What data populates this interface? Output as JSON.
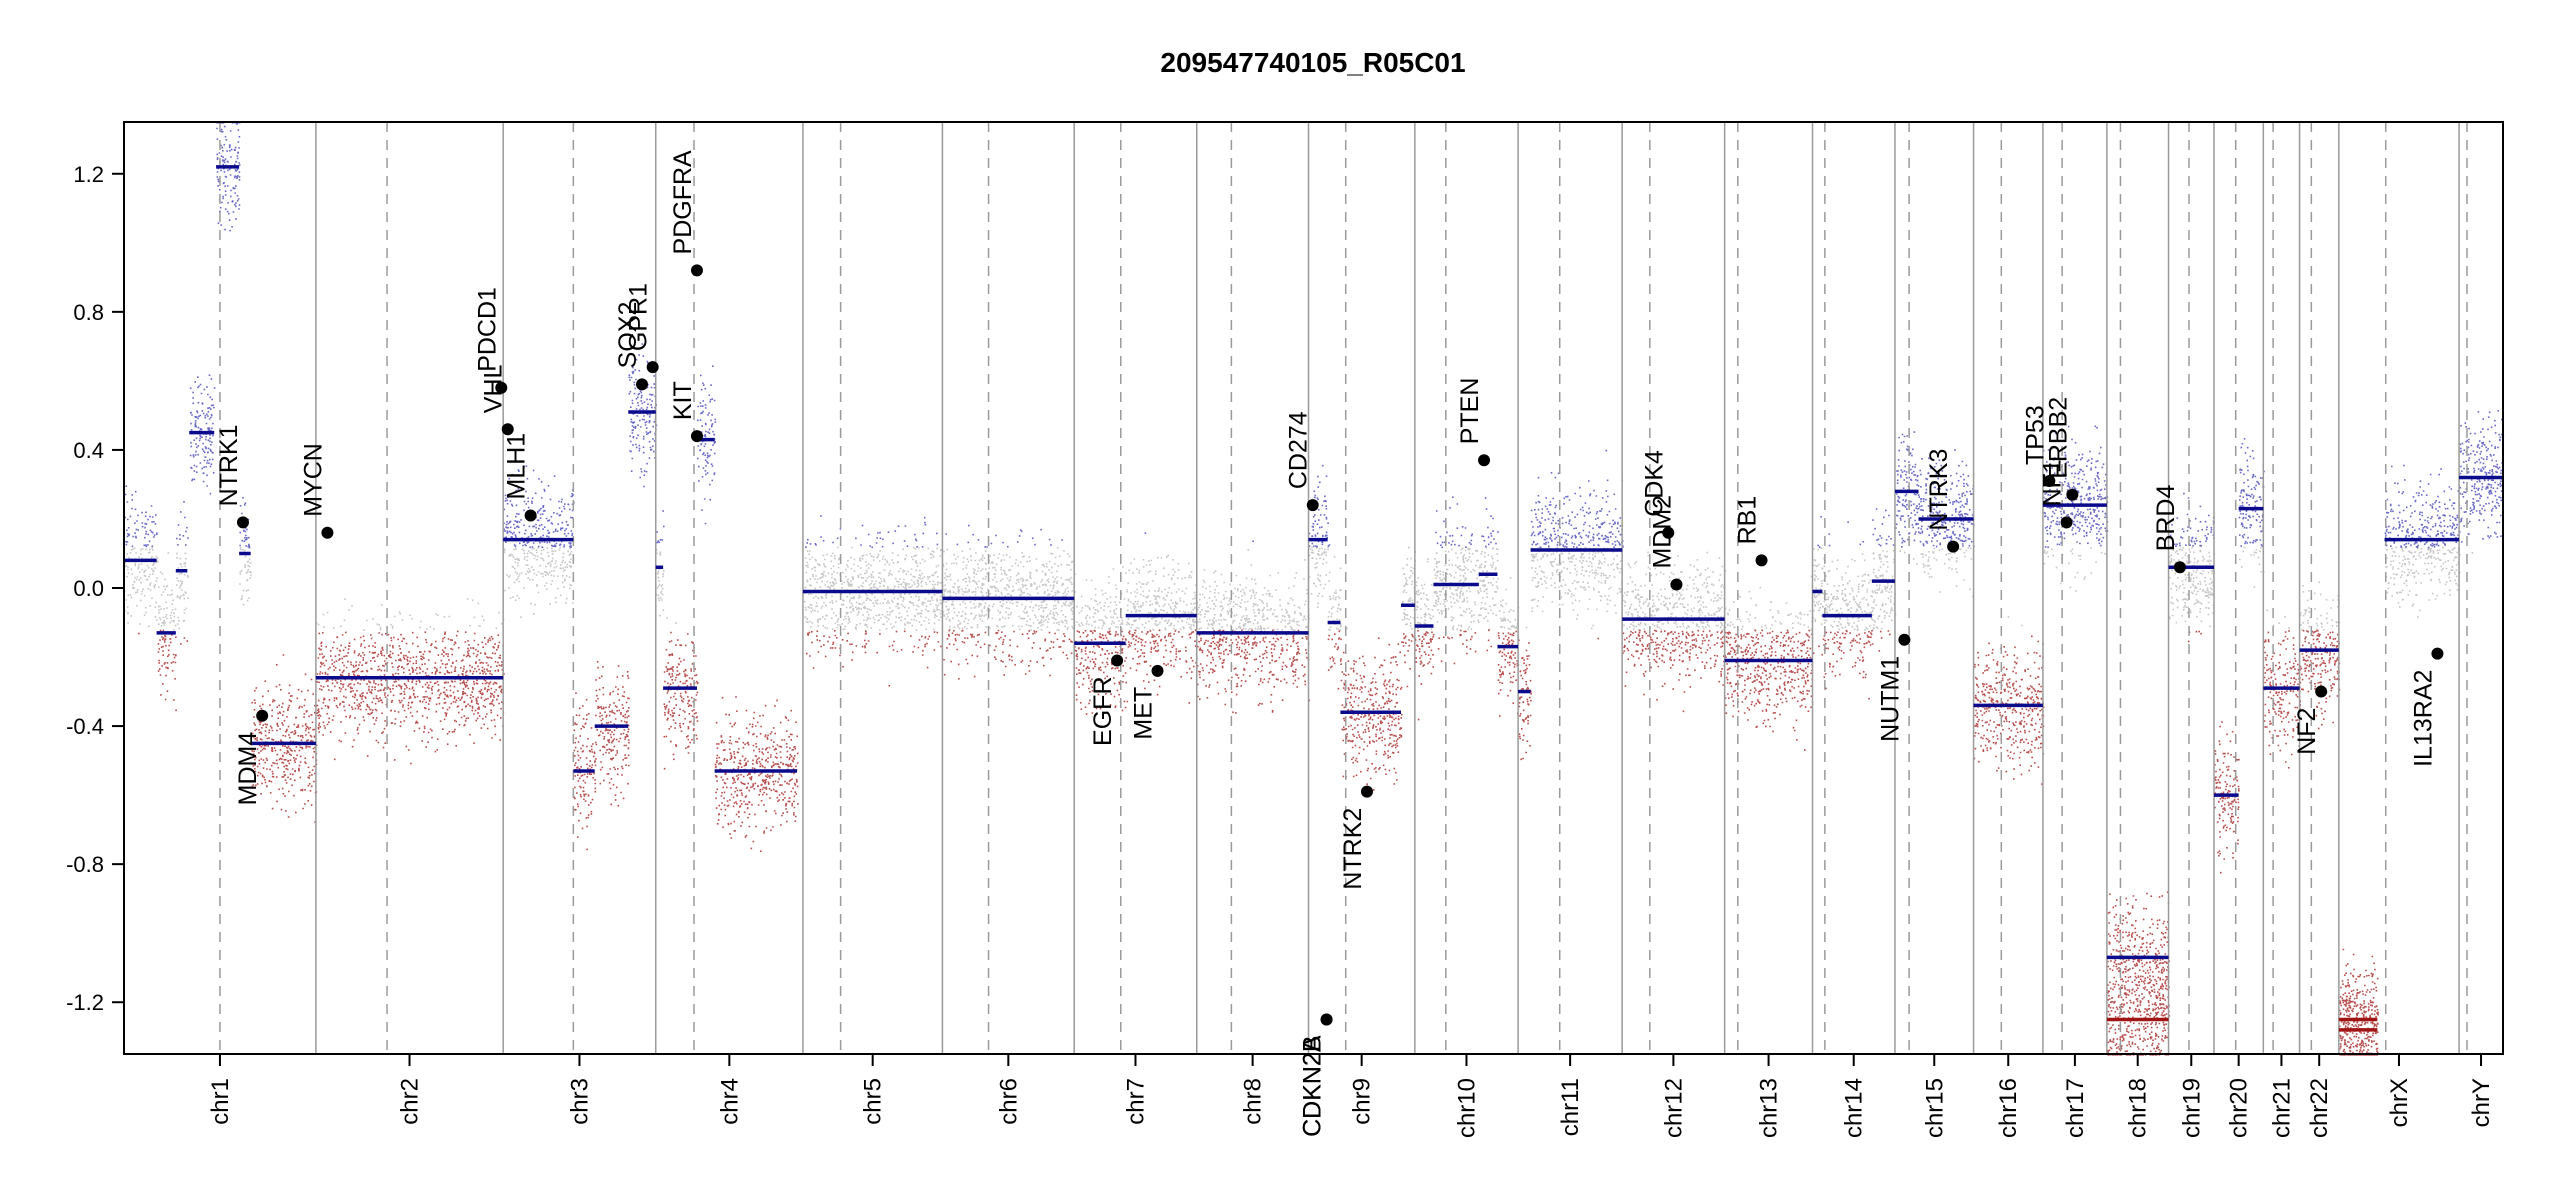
{
  "chart_data": {
    "type": "scatter",
    "title": "209547740105_R05C01",
    "xlabel": "",
    "ylabel": "",
    "ylim": [
      -1.35,
      1.35
    ],
    "y_ticks": [
      -1.2,
      -0.8,
      -0.4,
      0.0,
      0.4,
      0.8,
      1.2
    ],
    "y_tick_labels": [
      "-1.2",
      "-0.8",
      "-0.4",
      "0.0",
      "0.4",
      "0.8",
      "1.2"
    ],
    "grid": false,
    "legend": "none",
    "colors": {
      "gain": "#3a3ab4",
      "neutral": "#b4b4b4",
      "loss": "#a01414",
      "segment": "#0a0a8c",
      "segment_loss": "#a01414",
      "gene_point": "#000000"
    },
    "chromosomes": [
      {
        "name": "chr1",
        "length": 249.0,
        "centromere": 0.5
      },
      {
        "name": "chr2",
        "length": 243.0,
        "centromere": 0.38
      },
      {
        "name": "chr3",
        "length": 198.0,
        "centromere": 0.46
      },
      {
        "name": "chr4",
        "length": 191.0,
        "centromere": 0.26
      },
      {
        "name": "chr5",
        "length": 181.0,
        "centromere": 0.27
      },
      {
        "name": "chr6",
        "length": 171.0,
        "centromere": 0.35
      },
      {
        "name": "chr7",
        "length": 159.0,
        "centromere": 0.38
      },
      {
        "name": "chr8",
        "length": 145.0,
        "centromere": 0.31
      },
      {
        "name": "chr9",
        "length": 138.0,
        "centromere": 0.35
      },
      {
        "name": "chr10",
        "length": 134.0,
        "centromere": 0.3
      },
      {
        "name": "chr11",
        "length": 135.0,
        "centromere": 0.4
      },
      {
        "name": "chr12",
        "length": 133.0,
        "centromere": 0.27
      },
      {
        "name": "chr13",
        "length": 114.0,
        "centromere": 0.15
      },
      {
        "name": "chr14",
        "length": 107.0,
        "centromere": 0.15
      },
      {
        "name": "chr15",
        "length": 102.0,
        "centromere": 0.18
      },
      {
        "name": "chr16",
        "length": 90.0,
        "centromere": 0.4
      },
      {
        "name": "chr17",
        "length": 83.0,
        "centromere": 0.3
      },
      {
        "name": "chr18",
        "length": 80.0,
        "centromere": 0.22
      },
      {
        "name": "chr19",
        "length": 59.0,
        "centromere": 0.45
      },
      {
        "name": "chr20",
        "length": 64.0,
        "centromere": 0.44
      },
      {
        "name": "chr21",
        "length": 47.0,
        "centromere": 0.27
      },
      {
        "name": "chr22",
        "length": 51.0,
        "centromere": 0.3
      },
      {
        "name": "chrX",
        "length": 156.0,
        "centromere": 0.39
      },
      {
        "name": "chrY",
        "length": 57.0,
        "centromere": 0.18
      }
    ],
    "segments": [
      {
        "chr": "chr1",
        "start": 0.0,
        "end": 0.17,
        "value": 0.08
      },
      {
        "chr": "chr1",
        "start": 0.17,
        "end": 0.27,
        "value": -0.13
      },
      {
        "chr": "chr1",
        "start": 0.27,
        "end": 0.33,
        "value": 0.05
      },
      {
        "chr": "chr1",
        "start": 0.34,
        "end": 0.47,
        "value": 0.45
      },
      {
        "chr": "chr1",
        "start": 0.48,
        "end": 0.6,
        "value": 1.22
      },
      {
        "chr": "chr1",
        "start": 0.6,
        "end": 0.66,
        "value": 0.1
      },
      {
        "chr": "chr1",
        "start": 0.66,
        "end": 1.0,
        "value": -0.45
      },
      {
        "chr": "chr2",
        "start": 0.0,
        "end": 1.0,
        "value": -0.26
      },
      {
        "chr": "chr3",
        "start": 0.0,
        "end": 0.46,
        "value": 0.14
      },
      {
        "chr": "chr3",
        "start": 0.46,
        "end": 0.6,
        "value": -0.53
      },
      {
        "chr": "chr3",
        "start": 0.6,
        "end": 0.82,
        "value": -0.4
      },
      {
        "chr": "chr3",
        "start": 0.82,
        "end": 1.0,
        "value": 0.51
      },
      {
        "chr": "chr4",
        "start": 0.0,
        "end": 0.05,
        "value": 0.06
      },
      {
        "chr": "chr4",
        "start": 0.05,
        "end": 0.28,
        "value": -0.29
      },
      {
        "chr": "chr4",
        "start": 0.28,
        "end": 0.4,
        "value": 0.43
      },
      {
        "chr": "chr4",
        "start": 0.4,
        "end": 0.96,
        "value": -0.53
      },
      {
        "chr": "chr5",
        "start": 0.0,
        "end": 1.0,
        "value": -0.01
      },
      {
        "chr": "chr6",
        "start": 0.0,
        "end": 1.0,
        "value": -0.03
      },
      {
        "chr": "chr7",
        "start": 0.0,
        "end": 0.42,
        "value": -0.16
      },
      {
        "chr": "chr7",
        "start": 0.42,
        "end": 1.0,
        "value": -0.08
      },
      {
        "chr": "chr8",
        "start": 0.0,
        "end": 1.0,
        "value": -0.13
      },
      {
        "chr": "chr9",
        "start": 0.0,
        "end": 0.18,
        "value": 0.14
      },
      {
        "chr": "chr9",
        "start": 0.18,
        "end": 0.3,
        "value": -0.1
      },
      {
        "chr": "chr9",
        "start": 0.3,
        "end": 0.87,
        "value": -0.36
      },
      {
        "chr": "chr9",
        "start": 0.87,
        "end": 1.0,
        "value": -0.05
      },
      {
        "chr": "chr10",
        "start": 0.0,
        "end": 0.18,
        "value": -0.11
      },
      {
        "chr": "chr10",
        "start": 0.18,
        "end": 0.62,
        "value": 0.01
      },
      {
        "chr": "chr10",
        "start": 0.62,
        "end": 0.8,
        "value": 0.04
      },
      {
        "chr": "chr10",
        "start": 0.8,
        "end": 1.0,
        "value": -0.17
      },
      {
        "chr": "chr11",
        "start": 0.0,
        "end": 0.12,
        "value": -0.3
      },
      {
        "chr": "chr11",
        "start": 0.12,
        "end": 1.0,
        "value": 0.11
      },
      {
        "chr": "chr12",
        "start": 0.0,
        "end": 1.0,
        "value": -0.09
      },
      {
        "chr": "chr13",
        "start": 0.0,
        "end": 1.0,
        "value": -0.21
      },
      {
        "chr": "chr14",
        "start": 0.0,
        "end": 0.12,
        "value": -0.01
      },
      {
        "chr": "chr14",
        "start": 0.12,
        "end": 0.72,
        "value": -0.08
      },
      {
        "chr": "chr14",
        "start": 0.72,
        "end": 1.0,
        "value": 0.02
      },
      {
        "chr": "chr15",
        "start": 0.0,
        "end": 0.3,
        "value": 0.28
      },
      {
        "chr": "chr15",
        "start": 0.3,
        "end": 1.0,
        "value": 0.2
      },
      {
        "chr": "chr16",
        "start": 0.0,
        "end": 1.0,
        "value": -0.34
      },
      {
        "chr": "chr17",
        "start": 0.0,
        "end": 1.0,
        "value": 0.24
      },
      {
        "chr": "chr18",
        "start": 0.0,
        "end": 1.0,
        "value": -1.07
      },
      {
        "chr": "chr18",
        "start": 0.0,
        "end": 1.0,
        "value": -1.25
      },
      {
        "chr": "chr19",
        "start": 0.0,
        "end": 1.0,
        "value": 0.06
      },
      {
        "chr": "chr20",
        "start": 0.0,
        "end": 0.5,
        "value": -0.6
      },
      {
        "chr": "chr20",
        "start": 0.5,
        "end": 1.0,
        "value": 0.23
      },
      {
        "chr": "chr21",
        "start": 0.0,
        "end": 1.0,
        "value": -0.29
      },
      {
        "chr": "chr22",
        "start": 0.0,
        "end": 1.0,
        "value": -0.18
      },
      {
        "chr": "chrX",
        "start": 0.0,
        "end": 0.32,
        "value": -1.25
      },
      {
        "chr": "chrX",
        "start": 0.0,
        "end": 0.32,
        "value": -1.28
      },
      {
        "chr": "chrX",
        "start": 0.38,
        "end": 1.0,
        "value": 0.14
      },
      {
        "chr": "chrY",
        "start": 0.0,
        "end": 1.0,
        "value": 0.32
      }
    ],
    "genes": [
      {
        "name": "NTRK1",
        "chr": "chr1",
        "pos": 0.62,
        "value": 0.19
      },
      {
        "name": "MDM4",
        "chr": "chr1",
        "pos": 0.72,
        "value": -0.37
      },
      {
        "name": "MYCN",
        "chr": "chr1",
        "pos": 1.06,
        "value": 0.16
      },
      {
        "name": "VHL",
        "chr": "chr3",
        "pos": 0.03,
        "value": 0.46
      },
      {
        "name": "PDCD1",
        "chr": "chr2",
        "pos": 0.99,
        "value": 0.58
      },
      {
        "name": "MLH1",
        "chr": "chr3",
        "pos": 0.18,
        "value": 0.21
      },
      {
        "name": "SOX2",
        "chr": "chr3",
        "pos": 0.91,
        "value": 0.59
      },
      {
        "name": "GPR1",
        "chr": "chr3",
        "pos": 0.98,
        "value": 0.64
      },
      {
        "name": "KIT",
        "chr": "chr4",
        "pos": 0.28,
        "value": 0.44
      },
      {
        "name": "PDGFRA",
        "chr": "chr4",
        "pos": 0.28,
        "value": 0.92
      },
      {
        "name": "EGFR",
        "chr": "chr7",
        "pos": 0.35,
        "value": -0.21
      },
      {
        "name": "MET",
        "chr": "chr7",
        "pos": 0.68,
        "value": -0.24
      },
      {
        "name": "CD274",
        "chr": "chr9",
        "pos": 0.04,
        "value": 0.24
      },
      {
        "name": "CDKN2B",
        "chr": "chr9",
        "pos": 0.17,
        "value": -1.25
      },
      {
        "name": "CDKN2A",
        "chr": "chr9",
        "pos": 0.17,
        "value": -1.25
      },
      {
        "name": "NTRK2",
        "chr": "chr9",
        "pos": 0.55,
        "value": -0.59
      },
      {
        "name": "PTEN",
        "chr": "chr10",
        "pos": 0.67,
        "value": 0.37
      },
      {
        "name": "CDK4",
        "chr": "chr12",
        "pos": 0.45,
        "value": 0.16
      },
      {
        "name": "MDM2",
        "chr": "chr12",
        "pos": 0.53,
        "value": 0.01
      },
      {
        "name": "RB1",
        "chr": "chr13",
        "pos": 0.42,
        "value": 0.08
      },
      {
        "name": "NUTM1",
        "chr": "chr15",
        "pos": 0.12,
        "value": -0.15
      },
      {
        "name": "NTRK3",
        "chr": "chr15",
        "pos": 0.74,
        "value": 0.12
      },
      {
        "name": "TP53",
        "chr": "chr17",
        "pos": 0.1,
        "value": 0.31
      },
      {
        "name": "NF1",
        "chr": "chr17",
        "pos": 0.37,
        "value": 0.19
      },
      {
        "name": "ERBB2",
        "chr": "chr17",
        "pos": 0.46,
        "value": 0.27
      },
      {
        "name": "BRD4",
        "chr": "chr19",
        "pos": 0.25,
        "value": 0.06
      },
      {
        "name": "NF2",
        "chr": "chr22",
        "pos": 0.55,
        "value": -0.3
      },
      {
        "name": "IL13RA2",
        "chr": "chrX",
        "pos": 0.82,
        "value": -0.19
      }
    ]
  }
}
